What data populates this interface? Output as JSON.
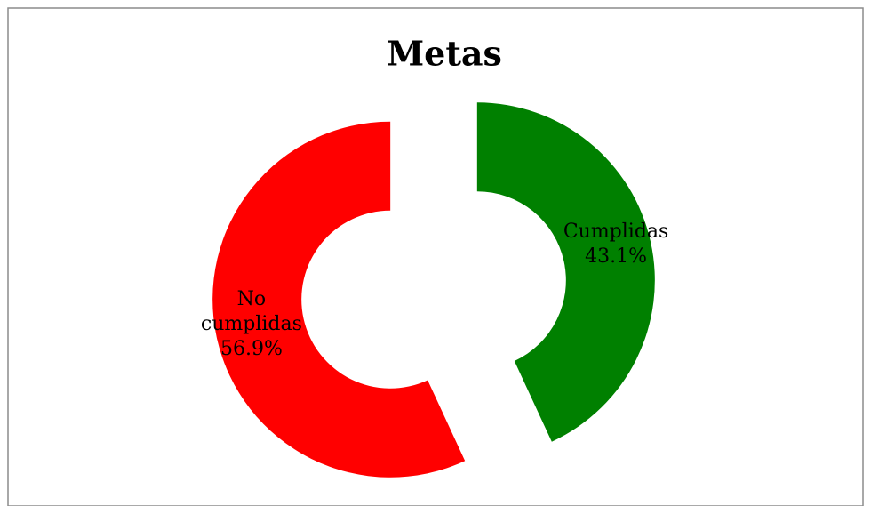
{
  "chart_data": {
    "type": "donut",
    "title": "Metas",
    "categories": [
      "Cumplidas",
      "No cumplidas"
    ],
    "values": [
      43.1,
      56.9
    ],
    "value_labels": [
      "43.1%",
      "56.9%"
    ],
    "colors": [
      "#008000",
      "#ff0000"
    ],
    "exploded": true
  }
}
